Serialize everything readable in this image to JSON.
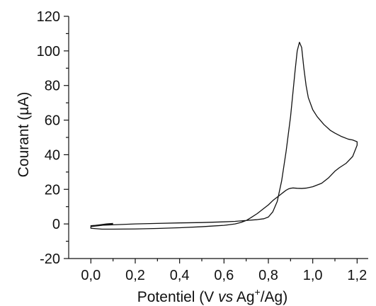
{
  "chart_data": {
    "type": "line",
    "title": "",
    "xlabel_parts": {
      "prefix": "Potentiel (V ",
      "italic": "vs",
      "middle": " Ag",
      "superscript": "+",
      "suffix": "/Ag)"
    },
    "ylabel": "Courant (µA)",
    "xlim": [
      -0.1,
      1.25
    ],
    "ylim": [
      -20,
      120
    ],
    "x_ticks": [
      0.0,
      0.2,
      0.4,
      0.6,
      0.8,
      1.0,
      1.2
    ],
    "x_tick_labels": [
      "0,0",
      "0,2",
      "0,4",
      "0,6",
      "0,8",
      "1,0",
      "1,2"
    ],
    "y_ticks": [
      -20,
      0,
      20,
      40,
      60,
      80,
      100,
      120
    ],
    "y_tick_labels": [
      "-20",
      "0",
      "20",
      "40",
      "60",
      "80",
      "100",
      "120"
    ],
    "grid": false,
    "legend": "none",
    "line_color": "#111111",
    "series": [
      {
        "x": [
          0.1,
          0.07,
          0.04,
          0.02,
          0.0,
          0.1,
          0.2,
          0.3,
          0.4,
          0.5,
          0.6,
          0.65,
          0.7,
          0.75,
          0.78,
          0.8,
          0.82,
          0.84,
          0.86,
          0.88,
          0.9,
          0.91,
          0.92,
          0.93,
          0.94,
          0.95,
          0.96,
          0.97,
          0.98,
          1.0,
          1.02,
          1.05,
          1.08,
          1.1,
          1.13,
          1.16,
          1.18,
          1.2,
          1.2,
          1.18,
          1.15,
          1.12,
          1.1,
          1.07,
          1.04,
          1.0,
          0.97,
          0.95,
          0.93,
          0.92,
          0.91,
          0.9,
          0.89,
          0.88,
          0.87,
          0.86,
          0.85,
          0.84,
          0.82,
          0.8,
          0.78,
          0.75,
          0.72,
          0.7,
          0.68,
          0.65,
          0.62,
          0.6,
          0.55,
          0.5,
          0.4,
          0.3,
          0.2,
          0.1,
          0.05,
          0.0,
          0.0,
          0.05,
          0.1
        ],
        "y": [
          0.3,
          0.0,
          -0.5,
          -0.8,
          -1.0,
          -0.5,
          0.0,
          0.3,
          0.6,
          0.8,
          1.2,
          1.5,
          2.0,
          2.5,
          3.0,
          4.0,
          7.0,
          13.0,
          25.0,
          42.0,
          62.0,
          75.0,
          88.0,
          100.0,
          105.0,
          102.0,
          90.0,
          80.0,
          73.0,
          66.0,
          62.0,
          57.5,
          54.0,
          52.5,
          50.5,
          49.0,
          48.5,
          47.5,
          45.5,
          39.0,
          35.0,
          32.5,
          30.5,
          26.5,
          23.5,
          21.5,
          20.7,
          20.5,
          20.6,
          20.7,
          20.8,
          20.6,
          20.2,
          19.5,
          18.5,
          17.5,
          16.5,
          15.5,
          13.5,
          11.0,
          9.0,
          6.0,
          3.5,
          2.0,
          1.0,
          0.0,
          -0.5,
          -0.8,
          -1.2,
          -1.6,
          -2.2,
          -2.6,
          -2.9,
          -3.0,
          -3.0,
          -2.5,
          -1.5,
          -0.8,
          0.0
        ]
      }
    ]
  }
}
